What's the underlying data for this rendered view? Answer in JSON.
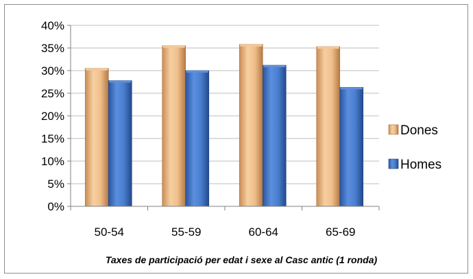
{
  "chart_data": {
    "type": "bar",
    "title": "Taxes de participació per edat i sexe  al Casc antic  (1 ronda)",
    "xlabel": "",
    "ylabel": "",
    "categories": [
      "50-54",
      "55-59",
      "60-64",
      "65-69"
    ],
    "series": [
      {
        "name": "Dones",
        "values": [
          30.5,
          35.5,
          35.8,
          35.3
        ],
        "color": "#e8b37a"
      },
      {
        "name": "Homes",
        "values": [
          27.8,
          30.0,
          31.2,
          26.3
        ],
        "color": "#3d72c4"
      }
    ],
    "ylim": [
      0,
      40
    ],
    "yticks": [
      0,
      5,
      10,
      15,
      20,
      25,
      30,
      35,
      40
    ],
    "ytick_labels": [
      "0%",
      "5%",
      "10%",
      "15%",
      "20%",
      "25%",
      "30%",
      "35%",
      "40%"
    ],
    "grid": true,
    "legend_position": "right"
  }
}
